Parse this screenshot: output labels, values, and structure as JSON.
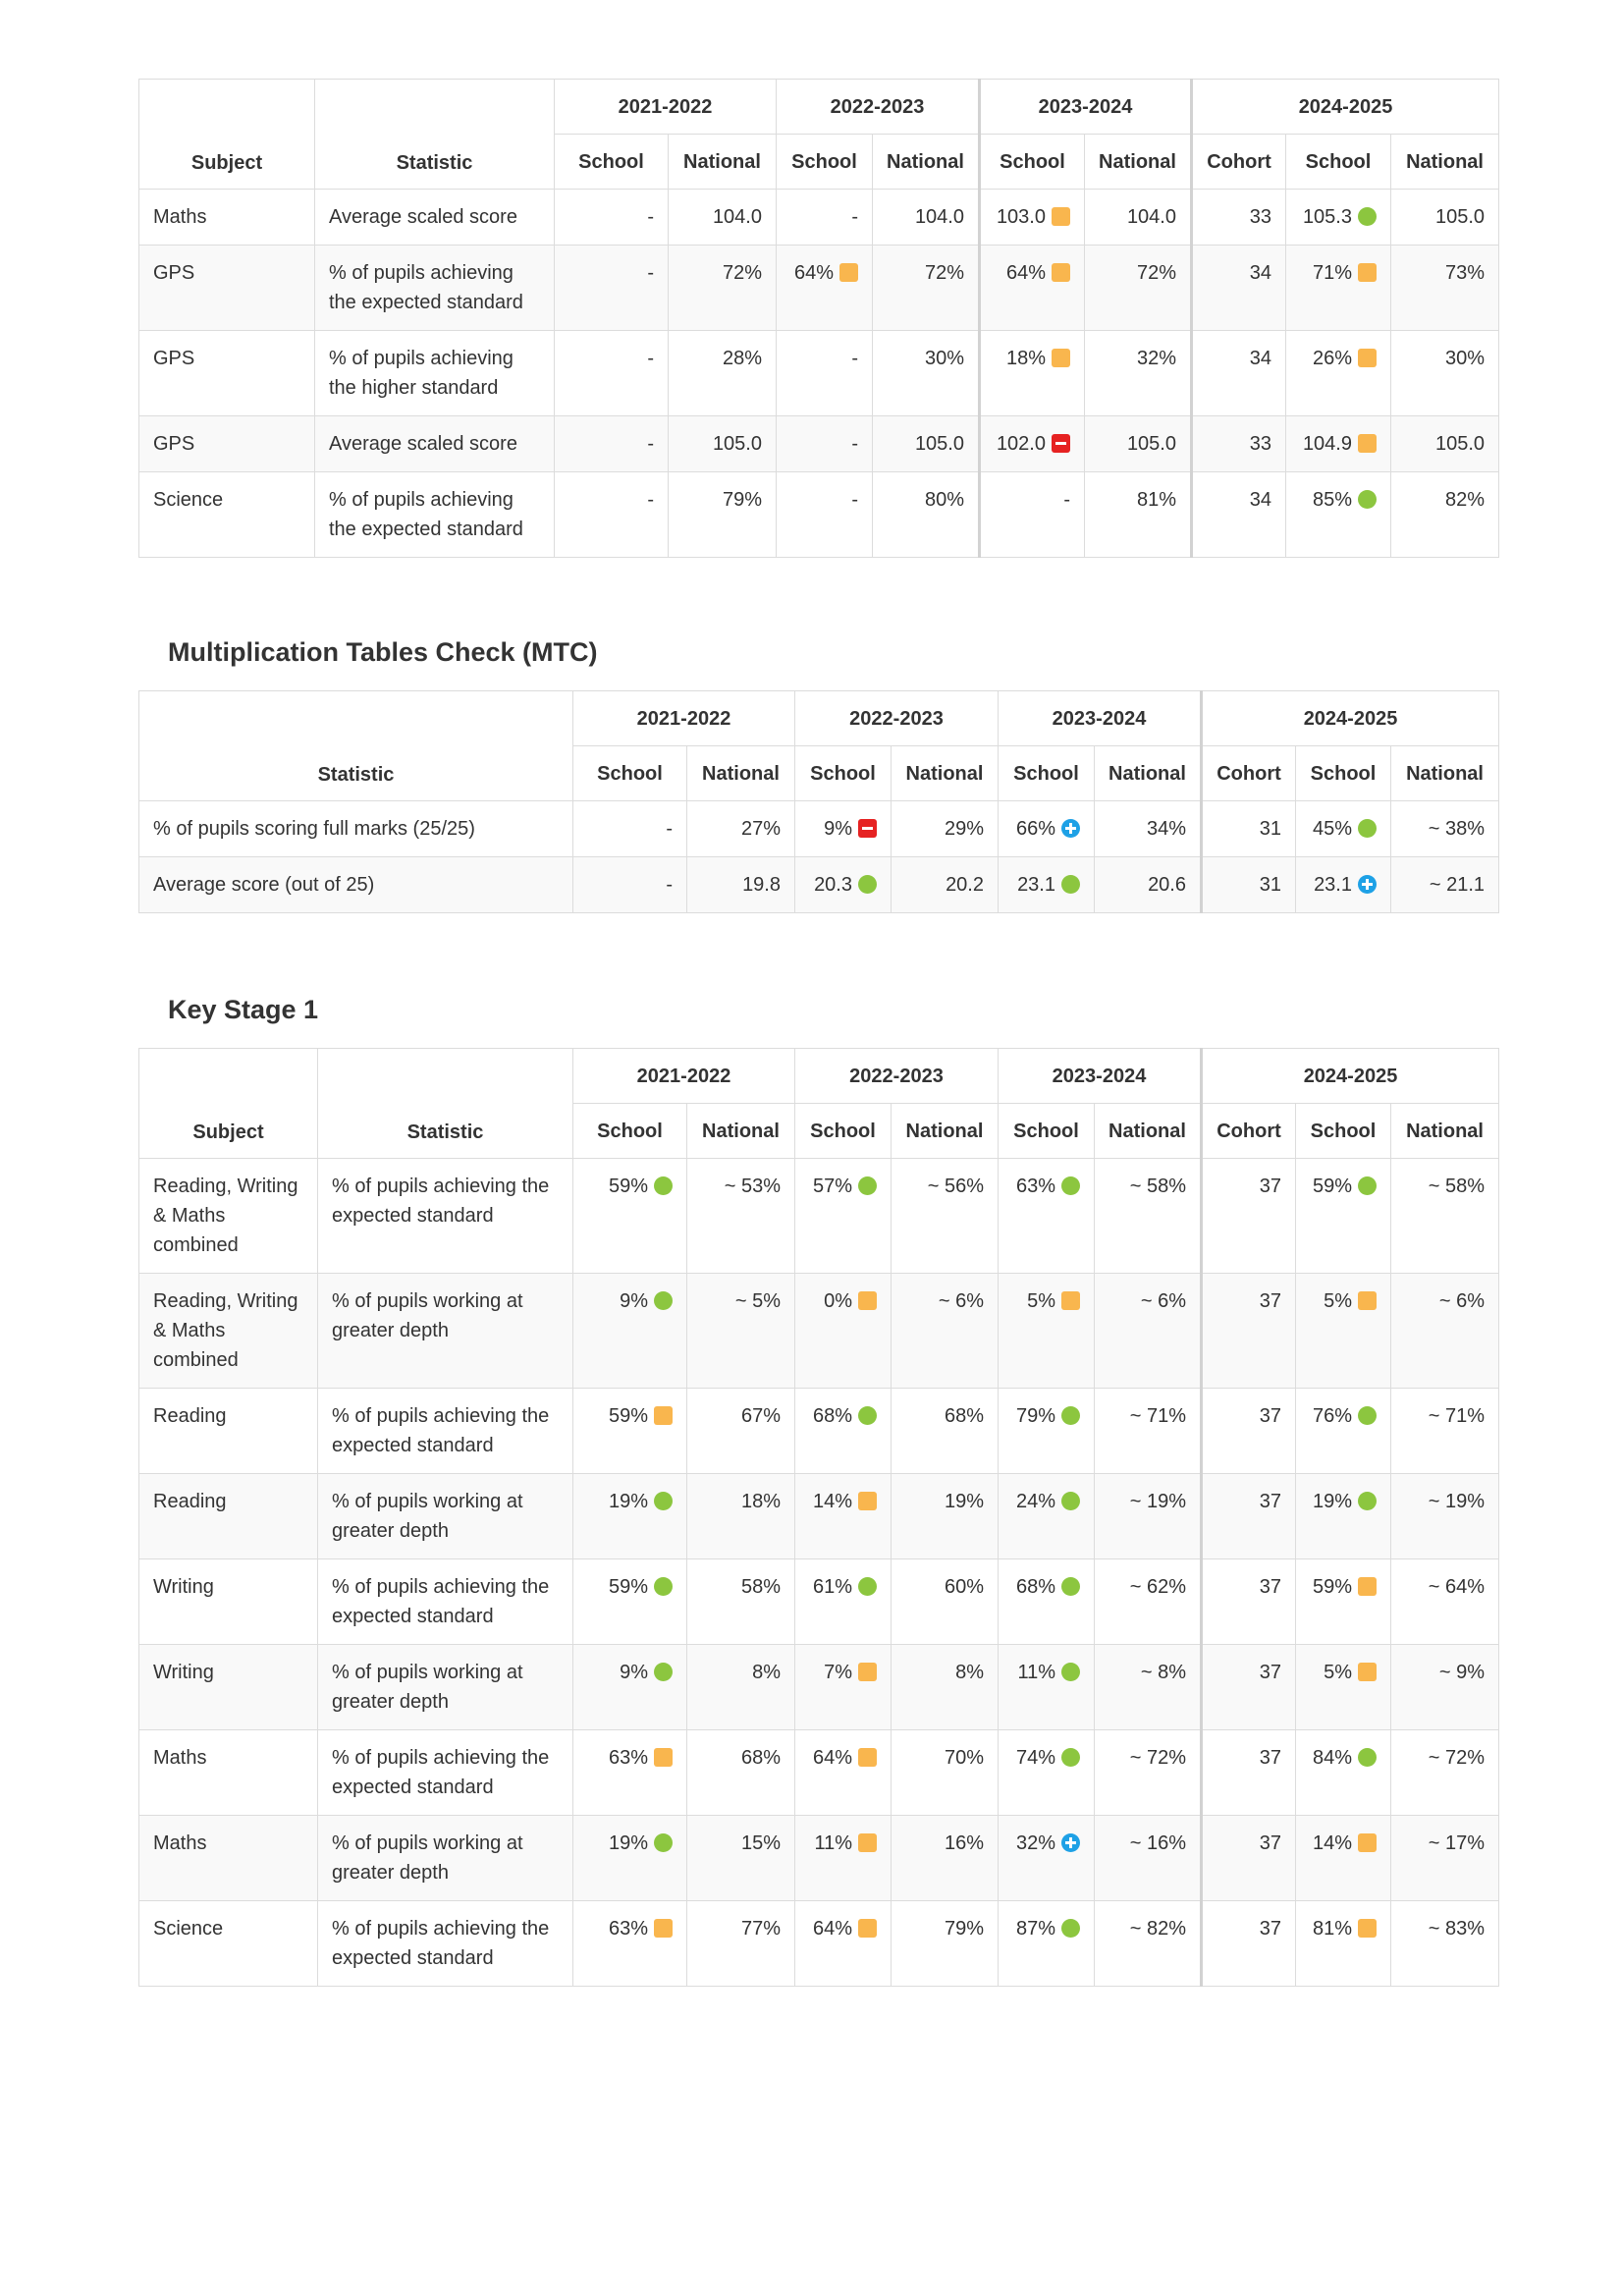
{
  "labels": {
    "subject": "Subject",
    "statistic": "Statistic",
    "school": "School",
    "national": "National",
    "cohort": "Cohort"
  },
  "years": [
    "2021-2022",
    "2022-2023",
    "2023-2024",
    "2024-2025"
  ],
  "marker_colors": {
    "green": "#8cc63f",
    "amber": "#f9b64e",
    "red": "#e62222",
    "blue": "#1ea1e6"
  },
  "ks2": {
    "rows": [
      {
        "subject": "Maths",
        "statistic": "Average scaled score",
        "cells": [
          {
            "v": "-"
          },
          {
            "v": "104.0"
          },
          {
            "v": "-"
          },
          {
            "v": "104.0"
          },
          {
            "v": "103.0",
            "m": "amber"
          },
          {
            "v": "104.0"
          },
          {
            "v": "33"
          },
          {
            "v": "105.3",
            "m": "green"
          },
          {
            "v": "105.0"
          }
        ]
      },
      {
        "subject": "GPS",
        "statistic": "% of pupils achieving the expected standard",
        "cells": [
          {
            "v": "-"
          },
          {
            "v": "72%"
          },
          {
            "v": "64%",
            "m": "amber"
          },
          {
            "v": "72%"
          },
          {
            "v": "64%",
            "m": "amber"
          },
          {
            "v": "72%"
          },
          {
            "v": "34"
          },
          {
            "v": "71%",
            "m": "amber"
          },
          {
            "v": "73%"
          }
        ]
      },
      {
        "subject": "GPS",
        "statistic": "% of pupils achieving the higher standard",
        "cells": [
          {
            "v": "-"
          },
          {
            "v": "28%"
          },
          {
            "v": "-"
          },
          {
            "v": "30%"
          },
          {
            "v": "18%",
            "m": "amber"
          },
          {
            "v": "32%"
          },
          {
            "v": "34"
          },
          {
            "v": "26%",
            "m": "amber"
          },
          {
            "v": "30%"
          }
        ]
      },
      {
        "subject": "GPS",
        "statistic": "Average scaled score",
        "cells": [
          {
            "v": "-"
          },
          {
            "v": "105.0"
          },
          {
            "v": "-"
          },
          {
            "v": "105.0"
          },
          {
            "v": "102.0",
            "m": "red"
          },
          {
            "v": "105.0"
          },
          {
            "v": "33"
          },
          {
            "v": "104.9",
            "m": "amber"
          },
          {
            "v": "105.0"
          }
        ]
      },
      {
        "subject": "Science",
        "statistic": "% of pupils achieving the expected standard",
        "cells": [
          {
            "v": "-"
          },
          {
            "v": "79%"
          },
          {
            "v": "-"
          },
          {
            "v": "80%"
          },
          {
            "v": "-"
          },
          {
            "v": "81%"
          },
          {
            "v": "34"
          },
          {
            "v": "85%",
            "m": "green"
          },
          {
            "v": "82%"
          }
        ]
      }
    ]
  },
  "mtc": {
    "title": "Multiplication Tables Check (MTC)",
    "rows": [
      {
        "statistic": "% of pupils scoring full marks (25/25)",
        "cells": [
          {
            "v": "-"
          },
          {
            "v": "27%"
          },
          {
            "v": "9%",
            "m": "red"
          },
          {
            "v": "29%"
          },
          {
            "v": "66%",
            "m": "blue"
          },
          {
            "v": "34%"
          },
          {
            "v": "31"
          },
          {
            "v": "45%",
            "m": "green"
          },
          {
            "v": "~ 38%"
          }
        ]
      },
      {
        "statistic": "Average score (out of 25)",
        "cells": [
          {
            "v": "-"
          },
          {
            "v": "19.8"
          },
          {
            "v": "20.3",
            "m": "green"
          },
          {
            "v": "20.2"
          },
          {
            "v": "23.1",
            "m": "green"
          },
          {
            "v": "20.6"
          },
          {
            "v": "31"
          },
          {
            "v": "23.1",
            "m": "blue"
          },
          {
            "v": "~ 21.1"
          }
        ]
      }
    ]
  },
  "ks1": {
    "title": "Key Stage 1",
    "rows": [
      {
        "subject": "Reading, Writing & Maths combined",
        "statistic": "% of pupils achieving the expected standard",
        "cells": [
          {
            "v": "59%",
            "m": "green"
          },
          {
            "v": "~ 53%"
          },
          {
            "v": "57%",
            "m": "green"
          },
          {
            "v": "~ 56%"
          },
          {
            "v": "63%",
            "m": "green"
          },
          {
            "v": "~ 58%"
          },
          {
            "v": "37"
          },
          {
            "v": "59%",
            "m": "green"
          },
          {
            "v": "~ 58%"
          }
        ]
      },
      {
        "subject": "Reading, Writing & Maths combined",
        "statistic": "% of pupils working at greater depth",
        "cells": [
          {
            "v": "9%",
            "m": "green"
          },
          {
            "v": "~ 5%"
          },
          {
            "v": "0%",
            "m": "amber"
          },
          {
            "v": "~ 6%"
          },
          {
            "v": "5%",
            "m": "amber"
          },
          {
            "v": "~ 6%"
          },
          {
            "v": "37"
          },
          {
            "v": "5%",
            "m": "amber"
          },
          {
            "v": "~ 6%"
          }
        ]
      },
      {
        "subject": "Reading",
        "statistic": "% of pupils achieving the expected standard",
        "cells": [
          {
            "v": "59%",
            "m": "amber"
          },
          {
            "v": "67%"
          },
          {
            "v": "68%",
            "m": "green"
          },
          {
            "v": "68%"
          },
          {
            "v": "79%",
            "m": "green"
          },
          {
            "v": "~ 71%"
          },
          {
            "v": "37"
          },
          {
            "v": "76%",
            "m": "green"
          },
          {
            "v": "~ 71%"
          }
        ]
      },
      {
        "subject": "Reading",
        "statistic": "% of pupils working at greater depth",
        "cells": [
          {
            "v": "19%",
            "m": "green"
          },
          {
            "v": "18%"
          },
          {
            "v": "14%",
            "m": "amber"
          },
          {
            "v": "19%"
          },
          {
            "v": "24%",
            "m": "green"
          },
          {
            "v": "~ 19%"
          },
          {
            "v": "37"
          },
          {
            "v": "19%",
            "m": "green"
          },
          {
            "v": "~ 19%"
          }
        ]
      },
      {
        "subject": "Writing",
        "statistic": "% of pupils achieving the expected standard",
        "cells": [
          {
            "v": "59%",
            "m": "green"
          },
          {
            "v": "58%"
          },
          {
            "v": "61%",
            "m": "green"
          },
          {
            "v": "60%"
          },
          {
            "v": "68%",
            "m": "green"
          },
          {
            "v": "~ 62%"
          },
          {
            "v": "37"
          },
          {
            "v": "59%",
            "m": "amber"
          },
          {
            "v": "~ 64%"
          }
        ]
      },
      {
        "subject": "Writing",
        "statistic": "% of pupils working at greater depth",
        "cells": [
          {
            "v": "9%",
            "m": "green"
          },
          {
            "v": "8%"
          },
          {
            "v": "7%",
            "m": "amber"
          },
          {
            "v": "8%"
          },
          {
            "v": "11%",
            "m": "green"
          },
          {
            "v": "~ 8%"
          },
          {
            "v": "37"
          },
          {
            "v": "5%",
            "m": "amber"
          },
          {
            "v": "~ 9%"
          }
        ]
      },
      {
        "subject": "Maths",
        "statistic": "% of pupils achieving the expected standard",
        "cells": [
          {
            "v": "63%",
            "m": "amber"
          },
          {
            "v": "68%"
          },
          {
            "v": "64%",
            "m": "amber"
          },
          {
            "v": "70%"
          },
          {
            "v": "74%",
            "m": "green"
          },
          {
            "v": "~ 72%"
          },
          {
            "v": "37"
          },
          {
            "v": "84%",
            "m": "green"
          },
          {
            "v": "~ 72%"
          }
        ]
      },
      {
        "subject": "Maths",
        "statistic": "% of pupils working at greater depth",
        "cells": [
          {
            "v": "19%",
            "m": "green"
          },
          {
            "v": "15%"
          },
          {
            "v": "11%",
            "m": "amber"
          },
          {
            "v": "16%"
          },
          {
            "v": "32%",
            "m": "blue"
          },
          {
            "v": "~ 16%"
          },
          {
            "v": "37"
          },
          {
            "v": "14%",
            "m": "amber"
          },
          {
            "v": "~ 17%"
          }
        ]
      },
      {
        "subject": "Science",
        "statistic": "% of pupils achieving the expected standard",
        "cells": [
          {
            "v": "63%",
            "m": "amber"
          },
          {
            "v": "77%"
          },
          {
            "v": "64%",
            "m": "amber"
          },
          {
            "v": "79%"
          },
          {
            "v": "87%",
            "m": "green"
          },
          {
            "v": "~ 82%"
          },
          {
            "v": "37"
          },
          {
            "v": "81%",
            "m": "amber"
          },
          {
            "v": "~ 83%"
          }
        ]
      }
    ]
  }
}
